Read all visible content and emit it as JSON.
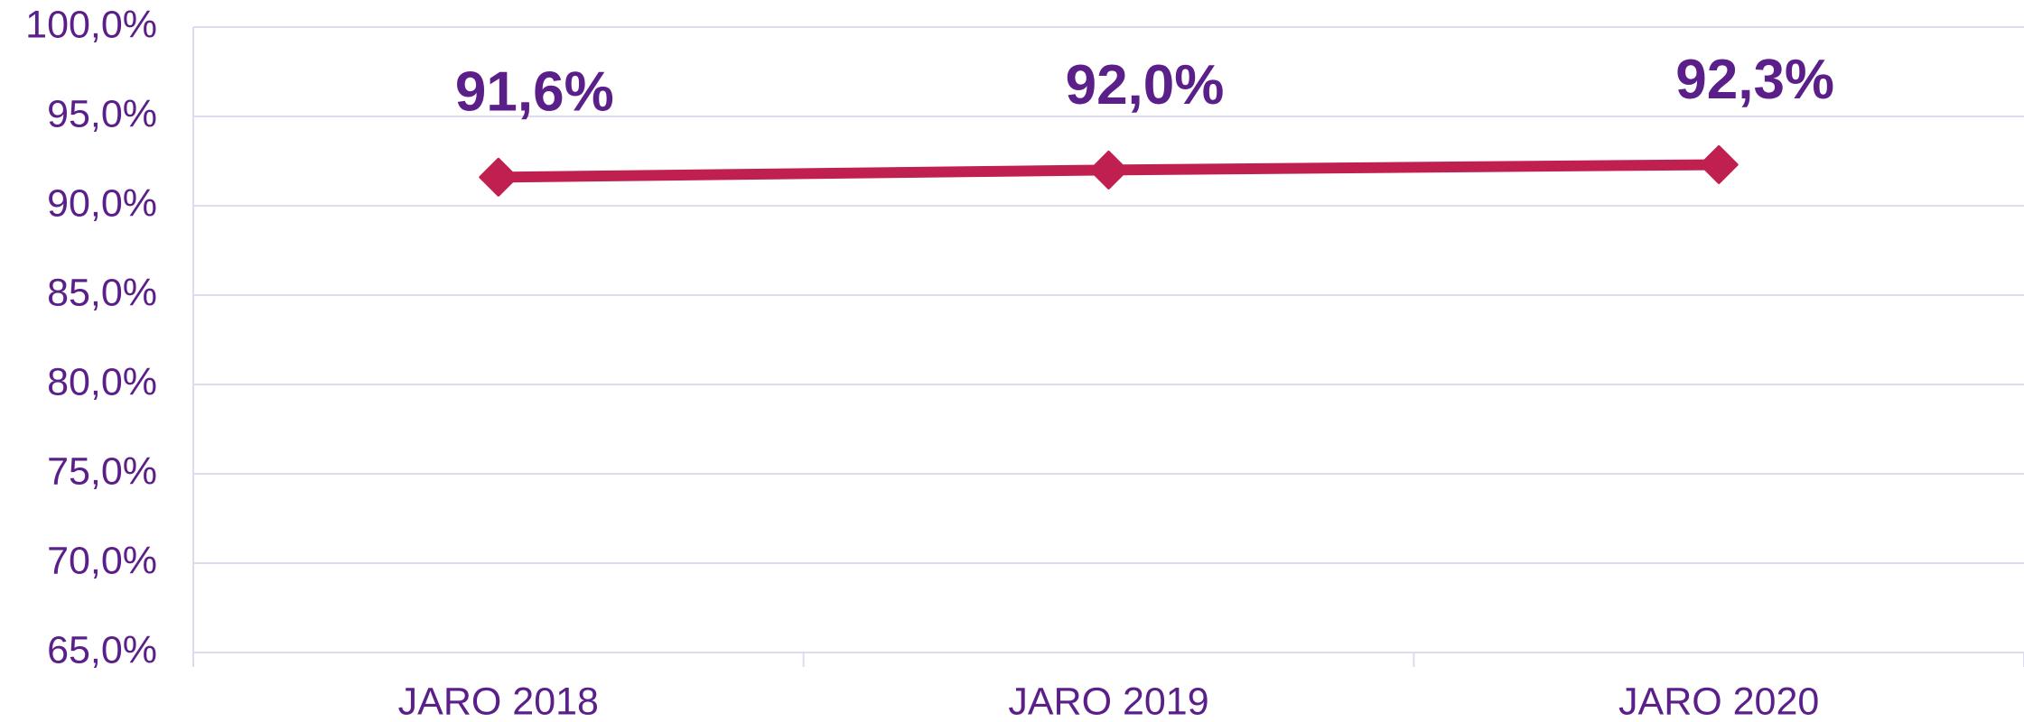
{
  "chart_data": {
    "type": "line",
    "categories": [
      "JARO 2018",
      "JARO 2019",
      "JARO 2020"
    ],
    "series": [
      {
        "color": "#c0204f",
        "values": [
          91.6,
          92.0,
          92.3
        ],
        "value_labels": [
          "91,6%",
          "92,0%",
          "92,3%"
        ]
      }
    ],
    "ylim": [
      65,
      100
    ],
    "yticks": [
      {
        "value": 65,
        "label": "65,0%"
      },
      {
        "value": 70,
        "label": "70,0%"
      },
      {
        "value": 75,
        "label": "75,0%"
      },
      {
        "value": 80,
        "label": "80,0%"
      },
      {
        "value": 85,
        "label": "85,0%"
      },
      {
        "value": 90,
        "label": "90,0%"
      },
      {
        "value": 95,
        "label": "95,0%"
      },
      {
        "value": 100,
        "label": "100,0%"
      }
    ],
    "grid": true
  }
}
